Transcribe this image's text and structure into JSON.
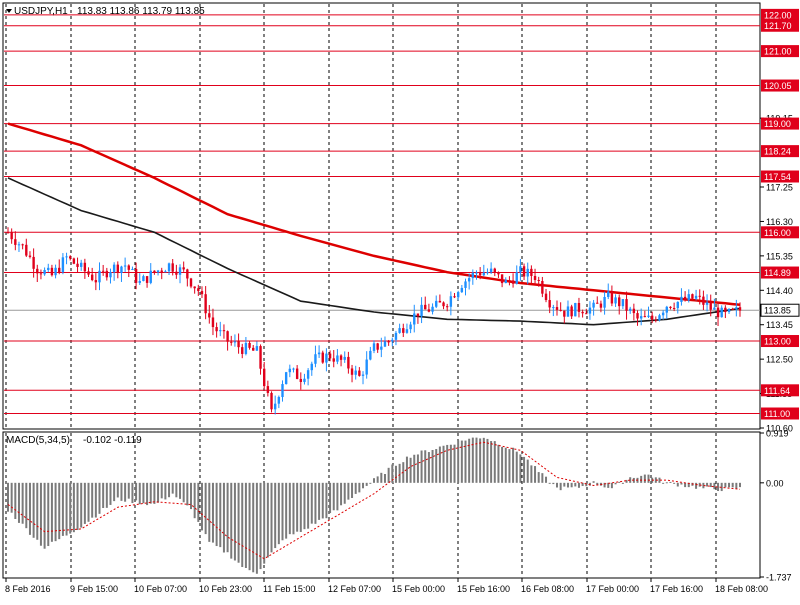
{
  "window": {
    "symbol_label": "USDJPY,H1",
    "ohlc_label": "113.83 113.86 113.79 113.85"
  },
  "indicator": {
    "label": "MACD(5,34,5)",
    "values_label": "-0.102 -0.119"
  },
  "colors": {
    "background": "#ffffff",
    "bull_candle": "#1e90ff",
    "bear_candle": "#e0001b",
    "level_line": "#e0001b",
    "ma_fast": "#dd0000",
    "ma_slow": "#1a1a1a",
    "macd_hist": "#7a7a7a",
    "macd_signal": "#dd0000",
    "grid": "#000000",
    "price_box": "#ffffff"
  },
  "chart_data": [
    {
      "type": "candlestick",
      "title": "USDJPY,H1",
      "current_price": 113.85,
      "ylim": [
        110.6,
        122.3
      ],
      "y_ticks": [
        "119.15",
        "117.25",
        "116.30",
        "115.35",
        "114.40",
        "113.45",
        "112.50",
        "111.55",
        "110.60"
      ],
      "horizontal_levels": [
        122.0,
        121.7,
        121.0,
        120.05,
        119.0,
        118.24,
        117.54,
        116.0,
        114.89,
        113.0,
        111.64,
        111.0
      ],
      "level_labels": [
        "122.00",
        "121.70",
        "121.00",
        "120.05",
        "119.00",
        "118.24",
        "117.54",
        "116.00",
        "114.89",
        "113.00",
        "111.64",
        "111.00"
      ],
      "current_price_label": "113.85",
      "x_labels": [
        "8 Feb 2016",
        "9 Feb 15:00",
        "10 Feb 07:00",
        "10 Feb 23:00",
        "11 Feb 15:00",
        "12 Feb 07:00",
        "15 Feb 00:00",
        "15 Feb 16:00",
        "16 Feb 08:00",
        "17 Feb 00:00",
        "17 Feb 16:00",
        "18 Feb 08:00"
      ],
      "price_path": [
        [
          0,
          116.0
        ],
        [
          4,
          115.6
        ],
        [
          8,
          115.0
        ],
        [
          12,
          114.8
        ],
        [
          16,
          115.3
        ],
        [
          20,
          115.0
        ],
        [
          24,
          114.7
        ],
        [
          28,
          115.0
        ],
        [
          32,
          115.1
        ],
        [
          36,
          114.6
        ],
        [
          40,
          114.9
        ],
        [
          44,
          115.1
        ],
        [
          48,
          114.9
        ],
        [
          52,
          114.4
        ],
        [
          56,
          113.4
        ],
        [
          60,
          113.0
        ],
        [
          64,
          112.8
        ],
        [
          68,
          112.7
        ],
        [
          72,
          111.0
        ],
        [
          76,
          112.2
        ],
        [
          80,
          112.0
        ],
        [
          84,
          112.5
        ],
        [
          88,
          112.6
        ],
        [
          92,
          112.4
        ],
        [
          96,
          112.0
        ],
        [
          100,
          112.8
        ],
        [
          104,
          113.0
        ],
        [
          108,
          113.4
        ],
        [
          112,
          113.8
        ],
        [
          116,
          113.9
        ],
        [
          120,
          114.1
        ],
        [
          124,
          114.6
        ],
        [
          128,
          114.9
        ],
        [
          132,
          114.9
        ],
        [
          136,
          114.6
        ],
        [
          140,
          114.9
        ],
        [
          144,
          114.8
        ],
        [
          148,
          114.1
        ],
        [
          152,
          113.8
        ],
        [
          156,
          113.9
        ],
        [
          160,
          113.9
        ],
        [
          164,
          114.2
        ],
        [
          168,
          114.0
        ],
        [
          172,
          113.6
        ],
        [
          176,
          113.6
        ],
        [
          180,
          114.0
        ],
        [
          184,
          114.1
        ],
        [
          188,
          114.2
        ],
        [
          192,
          113.9
        ],
        [
          196,
          113.7
        ],
        [
          200,
          113.85
        ]
      ],
      "series": [
        {
          "name": "MA fast",
          "values": [
            [
              0,
              119.0
            ],
            [
              20,
              118.4
            ],
            [
              40,
              117.5
            ],
            [
              60,
              116.5
            ],
            [
              80,
              115.9
            ],
            [
              100,
              115.35
            ],
            [
              120,
              114.9
            ],
            [
              140,
              114.6
            ],
            [
              160,
              114.4
            ],
            [
              180,
              114.2
            ],
            [
              200,
              114.0
            ]
          ]
        },
        {
          "name": "MA slow",
          "values": [
            [
              0,
              117.5
            ],
            [
              20,
              116.6
            ],
            [
              40,
              116.0
            ],
            [
              60,
              115.0
            ],
            [
              80,
              114.1
            ],
            [
              100,
              113.8
            ],
            [
              120,
              113.6
            ],
            [
              140,
              113.55
            ],
            [
              160,
              113.45
            ],
            [
              180,
              113.6
            ],
            [
              200,
              113.9
            ]
          ]
        }
      ]
    },
    {
      "type": "bar",
      "title": "MACD(5,34,5)",
      "ylim": [
        -1.737,
        0.919
      ],
      "y_ticks": [
        "0.919",
        "0.00",
        "-1.737"
      ],
      "histogram": [
        [
          0,
          -0.5
        ],
        [
          10,
          -1.2
        ],
        [
          20,
          -0.8
        ],
        [
          30,
          -0.3
        ],
        [
          40,
          -0.4
        ],
        [
          45,
          -0.2
        ],
        [
          50,
          -0.5
        ],
        [
          55,
          -1.1
        ],
        [
          60,
          -1.3
        ],
        [
          65,
          -1.6
        ],
        [
          68,
          -1.65
        ],
        [
          72,
          -1.3
        ],
        [
          76,
          -1.0
        ],
        [
          80,
          -0.9
        ],
        [
          85,
          -0.7
        ],
        [
          90,
          -0.5
        ],
        [
          95,
          -0.2
        ],
        [
          100,
          0.05
        ],
        [
          105,
          0.3
        ],
        [
          110,
          0.5
        ],
        [
          115,
          0.6
        ],
        [
          120,
          0.7
        ],
        [
          125,
          0.8
        ],
        [
          130,
          0.85
        ],
        [
          135,
          0.7
        ],
        [
          140,
          0.55
        ],
        [
          145,
          0.2
        ],
        [
          150,
          -0.1
        ],
        [
          155,
          -0.1
        ],
        [
          160,
          0.0
        ],
        [
          165,
          -0.1
        ],
        [
          170,
          0.1
        ],
        [
          175,
          0.15
        ],
        [
          180,
          0.0
        ],
        [
          185,
          -0.05
        ],
        [
          190,
          -0.1
        ],
        [
          195,
          -0.12
        ],
        [
          200,
          -0.102
        ]
      ],
      "signal": [
        [
          0,
          -0.4
        ],
        [
          10,
          -0.9
        ],
        [
          20,
          -0.85
        ],
        [
          30,
          -0.45
        ],
        [
          40,
          -0.35
        ],
        [
          50,
          -0.4
        ],
        [
          60,
          -1.0
        ],
        [
          70,
          -1.4
        ],
        [
          80,
          -1.0
        ],
        [
          90,
          -0.6
        ],
        [
          100,
          -0.2
        ],
        [
          110,
          0.3
        ],
        [
          120,
          0.6
        ],
        [
          130,
          0.75
        ],
        [
          140,
          0.6
        ],
        [
          150,
          0.1
        ],
        [
          160,
          -0.05
        ],
        [
          170,
          0.05
        ],
        [
          180,
          0.05
        ],
        [
          190,
          -0.05
        ],
        [
          200,
          -0.119
        ]
      ]
    }
  ]
}
